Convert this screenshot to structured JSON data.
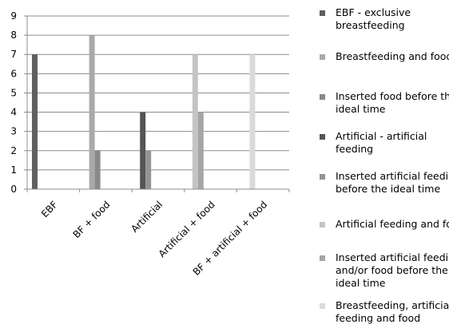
{
  "chart_data": {
    "type": "bar",
    "categories": [
      "EBF",
      "BF + food",
      "Artificial",
      "Artificial + food",
      "BF + artificial + food"
    ],
    "ylim": [
      0,
      9
    ],
    "y_ticks": [
      0,
      1,
      2,
      3,
      4,
      5,
      6,
      7,
      8,
      9
    ],
    "grid": true,
    "legend_position": "right",
    "series": [
      {
        "name": "EBF - exclusive breastfeeding",
        "color": "#5f5f5f",
        "values": [
          7,
          0,
          0,
          0,
          0
        ]
      },
      {
        "name": "Breastfeeding and food",
        "color": "#a9a9a9",
        "values": [
          0,
          8,
          0,
          0,
          0
        ]
      },
      {
        "name": "Inserted food before the ideal time",
        "color": "#8a8a8a",
        "values": [
          0,
          2,
          0,
          0,
          0
        ]
      },
      {
        "name": "Artificial - artificial feeding",
        "color": "#555555",
        "values": [
          0,
          0,
          4,
          0,
          0
        ]
      },
      {
        "name": "Inserted artificial feeding before the ideal time",
        "color": "#949494",
        "values": [
          0,
          0,
          2,
          0,
          0
        ]
      },
      {
        "name": "Artificial feeding and food",
        "color": "#c4c4c4",
        "values": [
          0,
          0,
          0,
          7,
          0
        ]
      },
      {
        "name": "Inserted artificial feeding and/or food before the ideal time",
        "color": "#a5a5a5",
        "values": [
          0,
          0,
          0,
          4,
          0
        ]
      },
      {
        "name": "Breastfeeding, artificial feeding and food",
        "color": "#dadada",
        "values": [
          0,
          0,
          0,
          0,
          7
        ]
      }
    ]
  }
}
